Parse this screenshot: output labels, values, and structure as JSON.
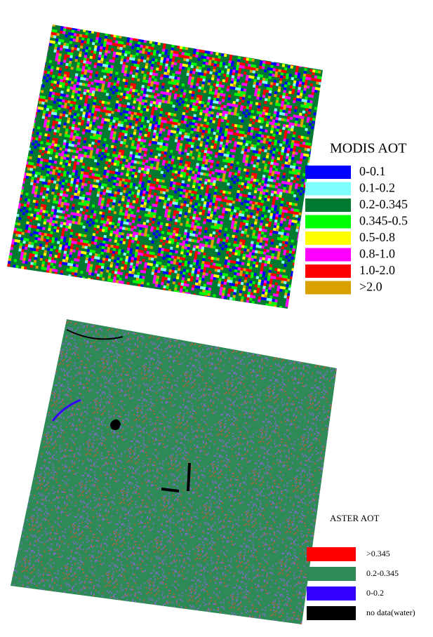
{
  "modis": {
    "title": "MODIS AOT",
    "legend": [
      {
        "label": "0-0.1",
        "color": "#0000ff"
      },
      {
        "label": "0.1-0.2",
        "color": "#80ffff"
      },
      {
        "label": "0.2-0.345",
        "color": "#007a30"
      },
      {
        "label": "0.345-0.5",
        "color": "#00ff00"
      },
      {
        "label": "0.5-0.8",
        "color": "#ffff00"
      },
      {
        "label": "0.8-1.0",
        "color": "#ff00ff"
      },
      {
        "label": "1.0-2.0",
        "color": "#ff0000"
      },
      {
        "label": ">2.0",
        "color": "#d8a000"
      }
    ]
  },
  "aster": {
    "title": "ASTER AOT",
    "legend": [
      {
        "label": ">0.345",
        "color": "#ff0000"
      },
      {
        "label": "0.2-0.345",
        "color": "#2e8b57"
      },
      {
        "label": "0-0.2",
        "color": "#3300ff"
      },
      {
        "label": "no data(water)",
        "color": "#000000"
      }
    ]
  }
}
